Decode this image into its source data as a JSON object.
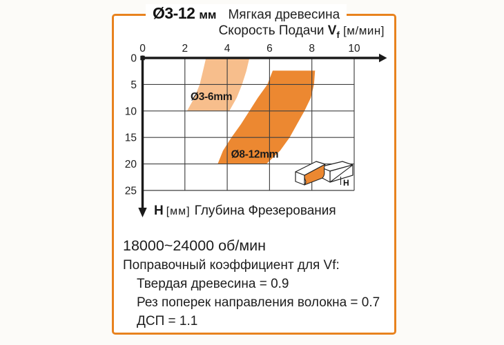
{
  "card": {
    "title_diameter": "Ø3-12",
    "title_diameter_unit": "мм",
    "title_material": "Мягкая древесина",
    "footer": {
      "rpm": "18000~24000 об/мин",
      "correction_title": "Поправочный коэффициент для Vf:",
      "corrections": [
        "Твердая древесина = 0.9",
        "Рез поперек направления волокна = 0.7",
        "ДСП = 1.1"
      ]
    }
  },
  "chart_data": {
    "type": "area",
    "title": "Ø3-12 мм Мягкая древесина",
    "x_axis": {
      "title_text": "Скорость Подачи",
      "title_symbol": "V",
      "title_symbol_sub": "f",
      "title_unit": "[м/мин]",
      "ticks": [
        0,
        2,
        4,
        6,
        8,
        10
      ],
      "range": [
        0,
        11
      ],
      "unit": "м/мин"
    },
    "y_axis": {
      "title_symbol": "H",
      "title_unit": "[мм]",
      "title_text": "Глубина Фрезерования",
      "ticks": [
        0,
        5,
        10,
        15,
        20,
        25
      ],
      "range": [
        0,
        25
      ],
      "direction": "down",
      "unit": "мм"
    },
    "grid": true,
    "bands": [
      {
        "name": "Ø3-6mm",
        "color": "#F7BE8C",
        "label_pos": {
          "v": 3.25,
          "h": 7.2
        },
        "left_edge": [
          [
            3.0,
            0
          ],
          [
            2.85,
            2.5
          ],
          [
            2.7,
            5
          ],
          [
            2.45,
            7.5
          ],
          [
            2.1,
            10
          ]
        ],
        "right_edge": [
          [
            5.05,
            0
          ],
          [
            4.9,
            2.5
          ],
          [
            4.7,
            5
          ],
          [
            4.45,
            7.5
          ],
          [
            4.1,
            10
          ]
        ]
      },
      {
        "name": "Ø8-12mm",
        "color": "#EC8831",
        "label_pos": {
          "v": 5.3,
          "h": 18.1
        },
        "left_edge": [
          [
            6.15,
            2.4
          ],
          [
            5.9,
            5
          ],
          [
            5.45,
            7.5
          ],
          [
            5.05,
            10
          ],
          [
            4.65,
            12.5
          ],
          [
            4.2,
            15
          ],
          [
            3.8,
            17.5
          ],
          [
            3.55,
            20
          ]
        ],
        "right_edge": [
          [
            8.15,
            2.4
          ],
          [
            8.1,
            5
          ],
          [
            7.95,
            7.5
          ],
          [
            7.65,
            10
          ],
          [
            7.3,
            12.5
          ],
          [
            6.95,
            15
          ],
          [
            6.5,
            17.5
          ],
          [
            5.85,
            20
          ]
        ]
      }
    ],
    "annotations": {
      "rpm": "18000~24000 об/мин",
      "correction_factors_for_Vf": {
        "hard_wood": 0.9,
        "cut_across_grain": 0.7,
        "chipboard": 1.1
      }
    }
  },
  "icon": {
    "depth_label": "H"
  },
  "colors": {
    "accent_orange": "#E8821E",
    "band_light": "#F7BE8C",
    "band_dark": "#EC8831",
    "axis": "#1a1a1a",
    "grid": "#3f3f3f"
  }
}
